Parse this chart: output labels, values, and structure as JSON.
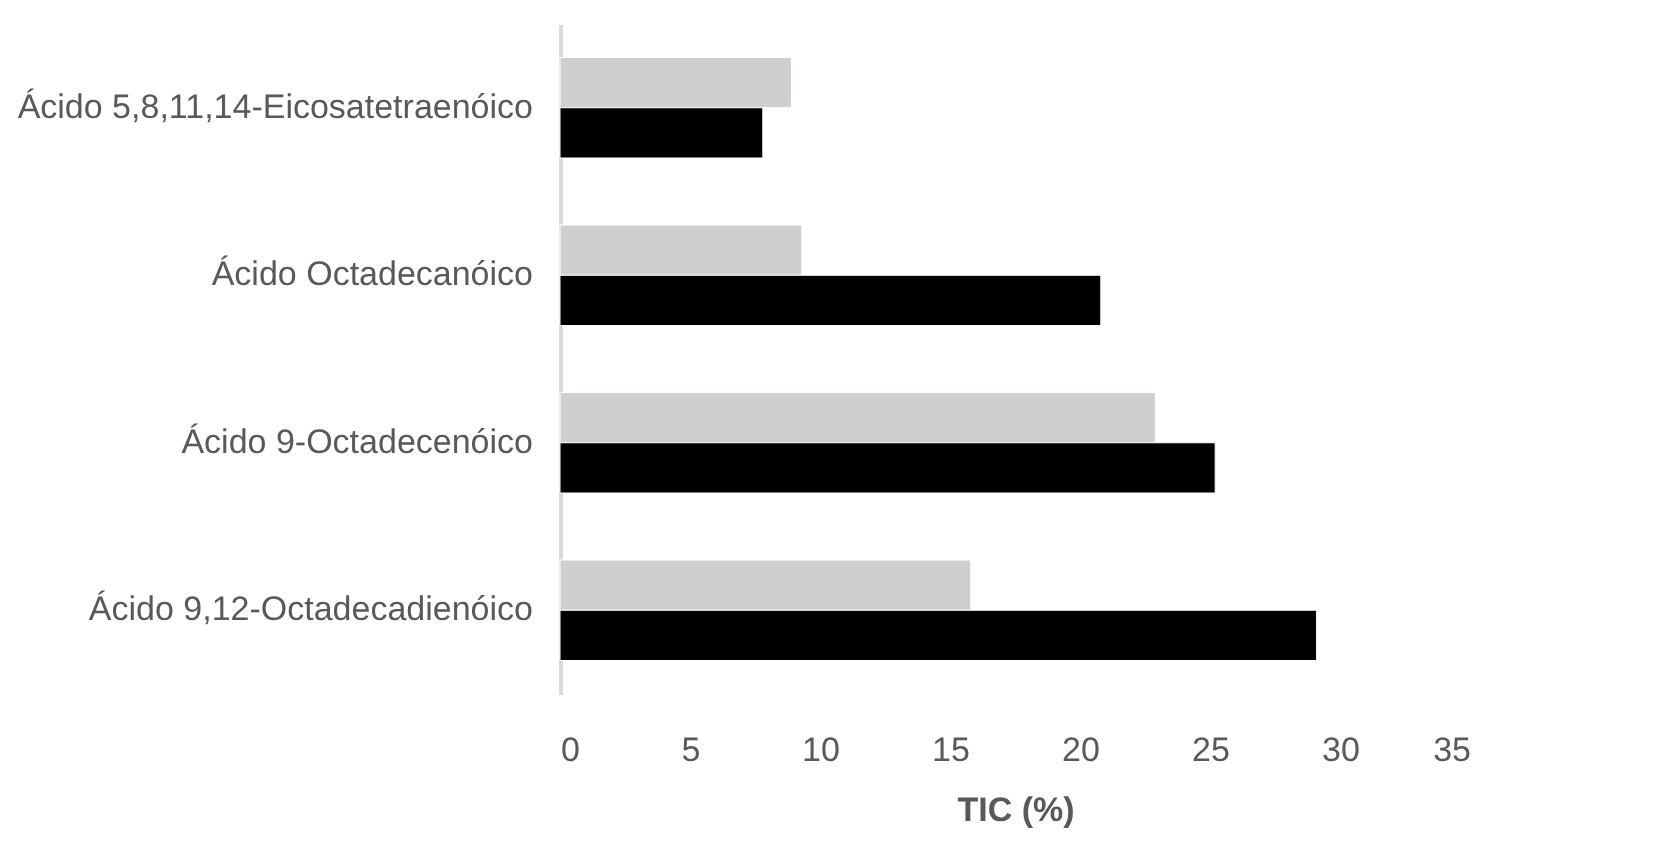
{
  "chart_data": {
    "type": "bar",
    "orientation": "horizontal",
    "xlabel": "TIC (%)",
    "categories": [
      "Ácido 5,8,11,14-Eicosatetraenóico",
      "Ácido Octadecanóico",
      "Ácido 9-Octadecenóico",
      "Ácido 9,12-Octadecadienóico"
    ],
    "series": [
      {
        "color": "#d0cece",
        "values": [
          8.9,
          9.3,
          22.9,
          15.8
        ]
      },
      {
        "color": "#000000",
        "values": [
          7.8,
          20.8,
          25.2,
          29.1
        ]
      }
    ],
    "xlim": [
      0,
      35
    ],
    "xticks": [
      0,
      5,
      10,
      15,
      20,
      25,
      30,
      35
    ],
    "grid": false,
    "legend": false
  }
}
